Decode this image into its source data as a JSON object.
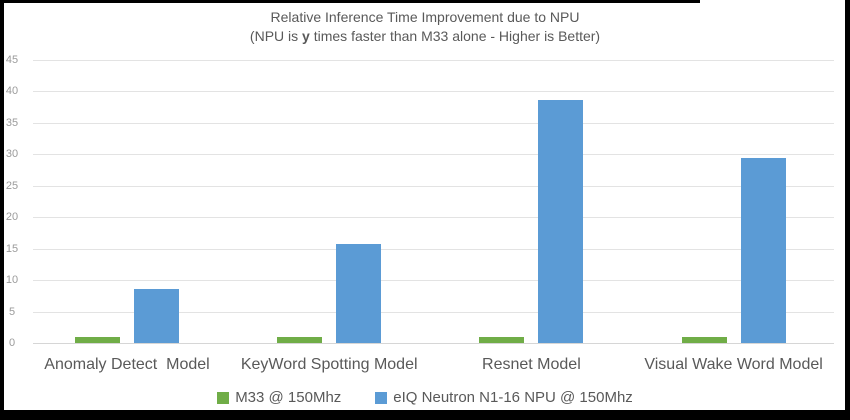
{
  "chart": {
    "title": "Relative Inference Time Improvement due to NPU",
    "subtitle_prefix": "(NPU is ",
    "subtitle_bold": "y",
    "subtitle_suffix": " times faster than M33 alone - Higher is Better)"
  },
  "chart_data": {
    "type": "bar",
    "title": "Relative Inference Time Improvement due to NPU",
    "subtitle": "(NPU is y times faster than M33 alone - Higher is Better)",
    "categories": [
      "Anomaly Detect  Model",
      "KeyWord Spotting Model",
      "Resnet Model",
      "Visual Wake Word Model"
    ],
    "series": [
      {
        "name": "M33 @ 150Mhz",
        "color": "#70ad47",
        "values": [
          1,
          1,
          1,
          1
        ]
      },
      {
        "name": "eIQ Neutron N1-16 NPU @ 150Mhz",
        "color": "#5b9bd5",
        "values": [
          8.6,
          15.7,
          38.7,
          29.4
        ]
      }
    ],
    "xlabel": "",
    "ylabel": "",
    "ylim": [
      0,
      45
    ],
    "ytick_step": 5,
    "grid": true,
    "legend_position": "bottom",
    "colors": {
      "grid": "#e3e3e3",
      "axis_text": "#9b9b9b",
      "label_text": "#595959",
      "frame": "#000000",
      "background": "#ffffff"
    }
  }
}
